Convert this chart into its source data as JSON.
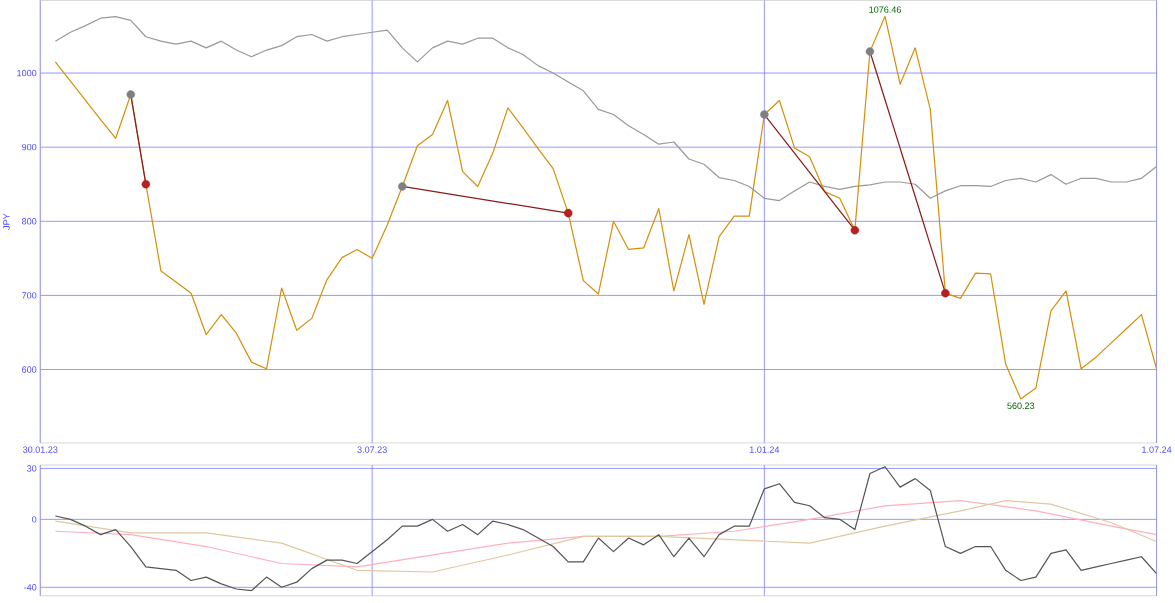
{
  "chart_data": [
    {
      "type": "line",
      "ylabel": "JPY",
      "xlim": [
        "2023-01-30",
        "2024-07-01"
      ],
      "ylim": [
        501,
        1098
      ],
      "xticks": [
        {
          "value": "2023-01-30",
          "label": "30.01.23"
        },
        {
          "value": "2023-07-03",
          "label": "3.07.23"
        },
        {
          "value": "2024-01-01",
          "label": "1.01.24"
        },
        {
          "value": "2024-07-01",
          "label": "1.07.24"
        }
      ],
      "yticks": [
        600,
        700,
        800,
        900,
        1000
      ],
      "grid": true,
      "x": [
        "2023-02-06",
        "2023-02-13",
        "2023-02-20",
        "2023-02-27",
        "2023-03-06",
        "2023-03-13",
        "2023-03-20",
        "2023-03-27",
        "2023-04-03",
        "2023-04-10",
        "2023-04-17",
        "2023-04-24",
        "2023-05-01",
        "2023-05-08",
        "2023-05-15",
        "2023-05-22",
        "2023-05-29",
        "2023-06-05",
        "2023-06-12",
        "2023-06-19",
        "2023-06-26",
        "2023-07-03",
        "2023-07-10",
        "2023-07-17",
        "2023-07-24",
        "2023-07-31",
        "2023-08-07",
        "2023-08-14",
        "2023-08-21",
        "2023-08-28",
        "2023-09-04",
        "2023-09-11",
        "2023-09-18",
        "2023-09-25",
        "2023-10-02",
        "2023-10-09",
        "2023-10-16",
        "2023-10-23",
        "2023-10-30",
        "2023-11-06",
        "2023-11-13",
        "2023-11-20",
        "2023-11-27",
        "2023-12-04",
        "2023-12-11",
        "2023-12-18",
        "2023-12-25",
        "2024-01-01",
        "2024-01-08",
        "2024-01-15",
        "2024-01-22",
        "2024-01-29",
        "2024-02-05",
        "2024-02-12",
        "2024-02-19",
        "2024-02-26",
        "2024-03-04",
        "2024-03-11",
        "2024-03-18",
        "2024-03-25",
        "2024-04-01",
        "2024-04-08",
        "2024-04-15",
        "2024-04-22",
        "2024-04-29",
        "2024-05-06",
        "2024-05-13",
        "2024-05-20",
        "2024-05-27",
        "2024-06-03",
        "2024-06-10",
        "2024-06-17",
        "2024-06-24",
        "2024-07-01"
      ],
      "series": [
        {
          "color": "#999999",
          "values": [
            1043,
            1055,
            1064,
            1074,
            1076,
            1071,
            1049,
            1043,
            1039,
            1043,
            1034,
            1043,
            1031,
            1022,
            1031,
            1037,
            1049,
            1052,
            1043,
            1049,
            1052,
            1055,
            1058,
            1034,
            1015,
            1034,
            1043,
            1039,
            1047,
            1047,
            1034,
            1025,
            1010,
            1000,
            988,
            976,
            951,
            944,
            929,
            917,
            904,
            907,
            884,
            877,
            859,
            855,
            847,
            831,
            828,
            841,
            853,
            847,
            843,
            847,
            849,
            853,
            853,
            850,
            831,
            841,
            848,
            848,
            847,
            855,
            858,
            853,
            863,
            850,
            858,
            858,
            853,
            853,
            858,
            874
          ]
        },
        {
          "color": "#d4900a",
          "values": [
            1015,
            989,
            963,
            937,
            912,
            971,
            850,
            733,
            718,
            703,
            647,
            674,
            649,
            610,
            601,
            710,
            653,
            669,
            721,
            751,
            762,
            750,
            795,
            847,
            902,
            917,
            963,
            867,
            847,
            892,
            953,
            926,
            898,
            871,
            811,
            720,
            702,
            800,
            762,
            764,
            817,
            706,
            782,
            688,
            779,
            807,
            807,
            944,
            963,
            899,
            887,
            840,
            831,
            788,
            1029,
            1076.46,
            985,
            1034,
            951,
            703,
            696,
            730,
            729,
            607,
            560.23,
            575,
            679,
            706,
            601,
            617,
            636,
            655,
            674,
            601
          ]
        },
        {
          "type": "line",
          "color": "#8b1a1a",
          "x": [
            "2023-03-13",
            "2023-03-20"
          ],
          "values": [
            971,
            850
          ]
        },
        {
          "type": "line",
          "color": "#8b1a1a",
          "x": [
            "2023-07-17",
            "2023-10-02"
          ],
          "values": [
            847,
            811
          ]
        },
        {
          "type": "line",
          "color": "#8b1a1a",
          "x": [
            "2024-01-01",
            "2024-02-12"
          ],
          "values": [
            944,
            788
          ]
        },
        {
          "type": "line",
          "color": "#8b1a1a",
          "x": [
            "2024-02-19",
            "2024-03-25"
          ],
          "values": [
            1029,
            703
          ]
        },
        {
          "type": "scatter",
          "marker": "circle",
          "color": "#808080",
          "x": [
            "2023-03-13",
            "2023-07-17",
            "2024-01-01",
            "2024-02-19"
          ],
          "values": [
            971,
            847,
            944,
            1029
          ]
        },
        {
          "type": "scatter",
          "marker": "circle",
          "color": "#b22222",
          "x": [
            "2023-03-20",
            "2023-10-02",
            "2024-02-12",
            "2024-03-25"
          ],
          "values": [
            850,
            811,
            788,
            703
          ]
        }
      ],
      "annotations": [
        {
          "text": "1076.46",
          "x": "2024-02-26",
          "y": 1076.46
        },
        {
          "text": "560.23",
          "x": "2024-04-29",
          "y": 560.23
        }
      ]
    },
    {
      "type": "line",
      "xlim": [
        "2023-01-30",
        "2024-07-01"
      ],
      "ylim": [
        -45,
        32
      ],
      "tick_labels": "y",
      "grid": true,
      "xticks": [
        {
          "value": "2023-01-30",
          "label": null
        },
        {
          "value": "2023-07-03",
          "label": null
        },
        {
          "value": "2024-01-01",
          "label": null
        },
        {
          "value": "2024-07-01",
          "label": null
        }
      ],
      "yticks": [
        -40,
        0,
        30
      ],
      "x": [
        "2023-02-06",
        "2023-02-13",
        "2023-02-20",
        "2023-02-27",
        "2023-03-06",
        "2023-03-13",
        "2023-03-20",
        "2023-03-27",
        "2023-04-03",
        "2023-04-10",
        "2023-04-17",
        "2023-04-24",
        "2023-05-01",
        "2023-05-08",
        "2023-05-15",
        "2023-05-22",
        "2023-05-29",
        "2023-06-05",
        "2023-06-12",
        "2023-06-19",
        "2023-06-26",
        "2023-07-03",
        "2023-07-10",
        "2023-07-17",
        "2023-07-24",
        "2023-07-31",
        "2023-08-07",
        "2023-08-14",
        "2023-08-21",
        "2023-08-28",
        "2023-09-04",
        "2023-09-11",
        "2023-09-18",
        "2023-09-25",
        "2023-10-02",
        "2023-10-09",
        "2023-10-16",
        "2023-10-23",
        "2023-10-30",
        "2023-11-06",
        "2023-11-13",
        "2023-11-20",
        "2023-11-27",
        "2023-12-04",
        "2023-12-11",
        "2023-12-18",
        "2023-12-25",
        "2024-01-01",
        "2024-01-08",
        "2024-01-15",
        "2024-01-22",
        "2024-01-29",
        "2024-02-05",
        "2024-02-12",
        "2024-02-19",
        "2024-02-26",
        "2024-03-04",
        "2024-03-11",
        "2024-03-18",
        "2024-03-25",
        "2024-04-01",
        "2024-04-08",
        "2024-04-15",
        "2024-04-22",
        "2024-04-29",
        "2024-05-06",
        "2024-05-13",
        "2024-05-20",
        "2024-05-27",
        "2024-06-03",
        "2024-06-10",
        "2024-06-17",
        "2024-06-24",
        "2024-07-01"
      ],
      "series": [
        {
          "color": "#ffb0c0",
          "x": [
            "2023-02-06",
            "2023-03-13",
            "2023-04-17",
            "2023-05-22",
            "2023-06-26",
            "2023-07-31",
            "2023-09-04",
            "2023-10-09",
            "2023-11-13",
            "2023-12-18",
            "2024-01-22",
            "2024-02-26",
            "2024-04-01",
            "2024-05-06",
            "2024-06-10",
            "2024-07-01"
          ],
          "values": [
            -7,
            -9,
            -16,
            -26,
            -28,
            -21,
            -14,
            -10,
            -10,
            -7,
            0,
            8,
            11,
            5,
            -4,
            -9
          ]
        },
        {
          "color": "#e0c8a0",
          "x": [
            "2023-02-06",
            "2023-03-13",
            "2023-04-17",
            "2023-05-22",
            "2023-06-26",
            "2023-07-31",
            "2023-09-04",
            "2023-10-09",
            "2023-11-13",
            "2023-12-18",
            "2024-01-22",
            "2024-02-26",
            "2024-04-01",
            "2024-04-22",
            "2024-05-13",
            "2024-06-10",
            "2024-07-01"
          ],
          "values": [
            -1,
            -8,
            -8,
            -14,
            -30,
            -31,
            -21,
            -10,
            -10,
            -12,
            -14,
            -4,
            5,
            11,
            9,
            -2,
            -13
          ]
        },
        {
          "color": "#555555",
          "values": [
            2,
            0,
            -4,
            -9,
            -6,
            -16,
            -28,
            -29,
            -30,
            -36,
            -34,
            -38,
            -41,
            -42,
            -34,
            -40,
            -37,
            -29,
            -24,
            -24,
            -26,
            -19,
            -12,
            -4,
            -4,
            0,
            -7,
            -3,
            -9,
            -1,
            -3,
            -6,
            -11,
            -16,
            -25,
            -25,
            -11,
            -19,
            -11,
            -15,
            -9,
            -22,
            -11,
            -22,
            -9,
            -4,
            -4,
            18,
            21,
            10,
            8,
            1,
            0,
            -6,
            27,
            31,
            19,
            24,
            17,
            -16,
            -20,
            -16,
            -16,
            -30,
            -36,
            -34,
            -20,
            -18,
            -30,
            -28,
            -26,
            -24,
            -22,
            -32
          ]
        }
      ]
    }
  ]
}
